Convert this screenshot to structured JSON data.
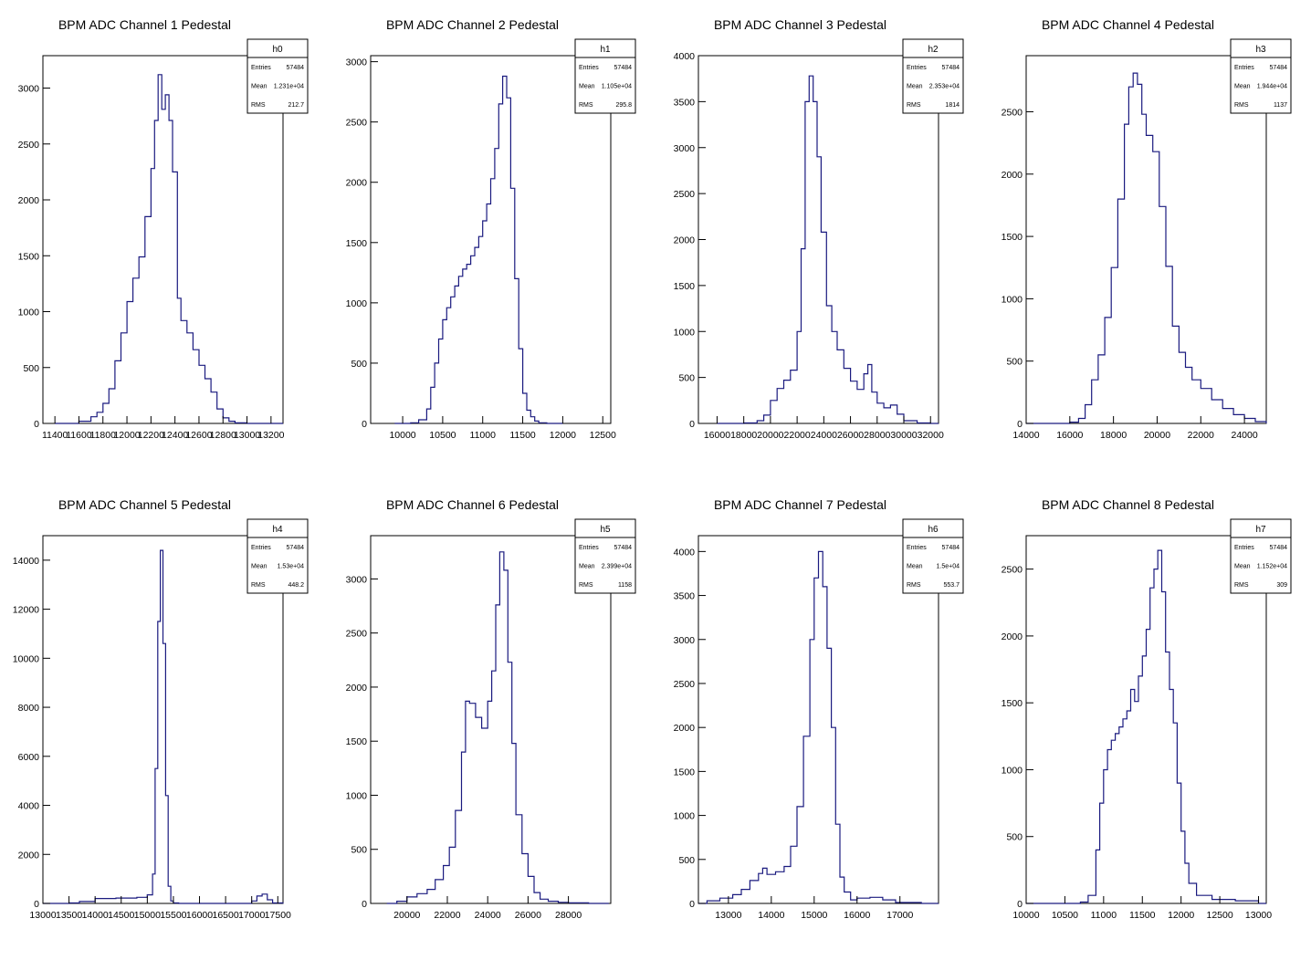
{
  "chart_data": [
    {
      "type": "histogram",
      "title": "BPM ADC Channel 1 Pedestal",
      "xlim": [
        11300,
        13300
      ],
      "ylim": [
        0,
        3290
      ],
      "xticks": [
        11400,
        11600,
        11800,
        12000,
        12200,
        12400,
        12600,
        12800,
        13000,
        13200
      ],
      "yticks": [
        0,
        500,
        1000,
        1500,
        2000,
        2500,
        3000
      ],
      "stats": {
        "name": "h0",
        "entries": "57484",
        "mean": "1.231e+04",
        "rms": "212.7"
      },
      "x": [
        11400,
        11500,
        11600,
        11700,
        11750,
        11800,
        11850,
        11900,
        11950,
        12000,
        12050,
        12100,
        12150,
        12200,
        12230,
        12260,
        12290,
        12320,
        12350,
        12380,
        12420,
        12450,
        12500,
        12550,
        12600,
        12650,
        12700,
        12750,
        12800,
        12850,
        12900,
        13000,
        13100,
        13200,
        13300
      ],
      "y": [
        0,
        0,
        20,
        60,
        100,
        180,
        310,
        560,
        810,
        1090,
        1300,
        1490,
        1850,
        2280,
        2710,
        3120,
        2810,
        2940,
        2710,
        2250,
        1120,
        920,
        810,
        660,
        520,
        400,
        280,
        130,
        50,
        20,
        5,
        0,
        0,
        0,
        0
      ]
    },
    {
      "type": "histogram",
      "title": "BPM ADC Channel 2 Pedestal",
      "xlim": [
        9600,
        12600
      ],
      "ylim": [
        0,
        3050
      ],
      "xticks": [
        10000,
        10500,
        11000,
        11500,
        12000,
        12500
      ],
      "yticks": [
        0,
        500,
        1000,
        1500,
        2000,
        2500,
        3000
      ],
      "stats": {
        "name": "h1",
        "entries": "57484",
        "mean": "1.105e+04",
        "rms": "295.8"
      },
      "x": [
        9900,
        10100,
        10200,
        10300,
        10350,
        10400,
        10450,
        10500,
        10550,
        10600,
        10650,
        10700,
        10750,
        10800,
        10850,
        10900,
        10950,
        11000,
        11050,
        11100,
        11150,
        11200,
        11250,
        11300,
        11350,
        11400,
        11450,
        11500,
        11550,
        11600,
        11650,
        11700,
        11800,
        12000
      ],
      "y": [
        0,
        5,
        30,
        120,
        300,
        500,
        700,
        860,
        960,
        1050,
        1140,
        1220,
        1280,
        1320,
        1390,
        1460,
        1550,
        1680,
        1820,
        2030,
        2280,
        2650,
        2880,
        2700,
        1950,
        1200,
        620,
        250,
        110,
        55,
        20,
        5,
        0,
        0
      ]
    },
    {
      "type": "histogram",
      "title": "BPM ADC Channel 3 Pedestal",
      "xlim": [
        14600,
        32600
      ],
      "ylim": [
        0,
        4000
      ],
      "xticks": [
        16000,
        18000,
        20000,
        22000,
        24000,
        26000,
        28000,
        30000,
        32000
      ],
      "yticks": [
        0,
        500,
        1000,
        1500,
        2000,
        2500,
        3000,
        3500,
        4000
      ],
      "stats": {
        "name": "h2",
        "entries": "57484",
        "mean": "2.353e+04",
        "rms": "1814"
      },
      "x": [
        16000,
        17000,
        18000,
        19000,
        19500,
        20000,
        20500,
        21000,
        21500,
        22000,
        22300,
        22600,
        22900,
        23200,
        23500,
        23800,
        24200,
        24600,
        25000,
        25500,
        26000,
        26500,
        27000,
        27300,
        27600,
        28000,
        28500,
        29000,
        29500,
        30000,
        31000,
        32000,
        32600
      ],
      "y": [
        0,
        0,
        5,
        30,
        90,
        250,
        380,
        470,
        580,
        1000,
        1900,
        3500,
        3780,
        3500,
        2900,
        2080,
        1280,
        1000,
        800,
        600,
        460,
        370,
        540,
        640,
        340,
        220,
        170,
        200,
        100,
        30,
        5,
        0,
        0
      ]
    },
    {
      "type": "histogram",
      "title": "BPM ADC Channel 4 Pedestal",
      "xlim": [
        14000,
        25000
      ],
      "ylim": [
        0,
        2950
      ],
      "xticks": [
        14000,
        16000,
        18000,
        20000,
        22000,
        24000
      ],
      "yticks": [
        0,
        500,
        1000,
        1500,
        2000,
        2500
      ],
      "stats": {
        "name": "h3",
        "entries": "57484",
        "mean": "1.944e+04",
        "rms": "1137"
      },
      "x": [
        14000,
        15000,
        16000,
        16400,
        16700,
        17000,
        17300,
        17600,
        17900,
        18200,
        18500,
        18700,
        18900,
        19100,
        19300,
        19500,
        19800,
        20100,
        20400,
        20700,
        21000,
        21300,
        21600,
        22000,
        22500,
        23000,
        23500,
        24000,
        24500,
        25000
      ],
      "y": [
        0,
        0,
        10,
        40,
        150,
        350,
        550,
        850,
        1250,
        1800,
        2400,
        2700,
        2810,
        2720,
        2480,
        2310,
        2180,
        1740,
        1260,
        780,
        570,
        450,
        350,
        280,
        190,
        120,
        70,
        40,
        15,
        0
      ]
    },
    {
      "type": "histogram",
      "title": "BPM ADC Channel 5 Pedestal",
      "xlim": [
        13000,
        17600
      ],
      "ylim": [
        0,
        15000
      ],
      "xticks": [
        13000,
        13500,
        14000,
        14500,
        15000,
        15500,
        16000,
        16500,
        17000,
        17500
      ],
      "yticks": [
        0,
        2000,
        4000,
        6000,
        8000,
        10000,
        12000,
        14000
      ],
      "stats": {
        "name": "h4",
        "entries": "57484",
        "mean": "1.53e+04",
        "rms": "448.2"
      },
      "x": [
        13000,
        13500,
        13700,
        14000,
        14400,
        14800,
        15000,
        15100,
        15150,
        15200,
        15250,
        15300,
        15350,
        15400,
        15450,
        15500,
        15600,
        16000,
        16500,
        17000,
        17100,
        17200,
        17300,
        17400,
        17600
      ],
      "y": [
        0,
        20,
        80,
        200,
        220,
        250,
        350,
        1200,
        5500,
        11500,
        14400,
        10600,
        4400,
        700,
        100,
        20,
        0,
        0,
        0,
        100,
        300,
        380,
        150,
        20,
        0
      ]
    },
    {
      "type": "histogram",
      "title": "BPM ADC Channel 6 Pedestal",
      "xlim": [
        18200,
        30100
      ],
      "ylim": [
        0,
        3400
      ],
      "xticks": [
        20000,
        22000,
        24000,
        26000,
        28000
      ],
      "yticks": [
        0,
        500,
        1000,
        1500,
        2000,
        2500,
        3000
      ],
      "stats": {
        "name": "h5",
        "entries": "57484",
        "mean": "2.399e+04",
        "rms": "1158"
      },
      "x": [
        19000,
        19500,
        20000,
        20500,
        21000,
        21400,
        21800,
        22100,
        22400,
        22700,
        22900,
        23100,
        23400,
        23700,
        24000,
        24200,
        24400,
        24600,
        24800,
        25000,
        25200,
        25400,
        25700,
        26000,
        26300,
        26600,
        27000,
        27500,
        28000,
        29000,
        30000
      ],
      "y": [
        0,
        20,
        60,
        90,
        130,
        220,
        350,
        520,
        860,
        1400,
        1870,
        1850,
        1720,
        1620,
        1870,
        2150,
        2760,
        3250,
        3080,
        2230,
        1480,
        820,
        460,
        250,
        100,
        40,
        20,
        10,
        5,
        0,
        0
      ]
    },
    {
      "type": "histogram",
      "title": "BPM ADC Channel 7 Pedestal",
      "xlim": [
        12300,
        17900
      ],
      "ylim": [
        0,
        4180
      ],
      "xticks": [
        13000,
        14000,
        15000,
        16000,
        17000
      ],
      "yticks": [
        0,
        500,
        1000,
        1500,
        2000,
        2500,
        3000,
        3500,
        4000
      ],
      "stats": {
        "name": "h6",
        "entries": "57484",
        "mean": "1.5e+04",
        "rms": "553.7"
      },
      "x": [
        12300,
        12500,
        12800,
        13100,
        13300,
        13500,
        13700,
        13800,
        13900,
        14100,
        14300,
        14450,
        14600,
        14750,
        14900,
        15000,
        15100,
        15200,
        15300,
        15400,
        15500,
        15600,
        15700,
        15850,
        16000,
        16300,
        16600,
        16900,
        17500,
        17900
      ],
      "y": [
        0,
        30,
        60,
        100,
        160,
        260,
        340,
        400,
        330,
        360,
        420,
        650,
        1100,
        1900,
        3000,
        3700,
        4000,
        3600,
        2900,
        2000,
        900,
        300,
        130,
        40,
        60,
        70,
        40,
        10,
        0,
        0
      ]
    },
    {
      "type": "histogram",
      "title": "BPM ADC Channel 8 Pedestal",
      "xlim": [
        10000,
        13100
      ],
      "ylim": [
        0,
        2750
      ],
      "xticks": [
        10000,
        10500,
        11000,
        11500,
        12000,
        12500,
        13000
      ],
      "yticks": [
        0,
        500,
        1000,
        1500,
        2000,
        2500
      ],
      "stats": {
        "name": "h7",
        "entries": "57484",
        "mean": "1.152e+04",
        "rms": "309"
      },
      "x": [
        10000,
        10500,
        10700,
        10800,
        10900,
        10950,
        11000,
        11050,
        11100,
        11150,
        11200,
        11250,
        11300,
        11350,
        11400,
        11450,
        11500,
        11550,
        11600,
        11650,
        11700,
        11750,
        11800,
        11850,
        11900,
        11950,
        12000,
        12050,
        12100,
        12200,
        12400,
        12700,
        13000,
        13100
      ],
      "y": [
        0,
        0,
        10,
        60,
        400,
        750,
        1000,
        1150,
        1220,
        1270,
        1320,
        1380,
        1440,
        1600,
        1510,
        1700,
        1850,
        2050,
        2360,
        2500,
        2640,
        2330,
        1880,
        1600,
        1350,
        900,
        540,
        300,
        150,
        60,
        30,
        20,
        0,
        0
      ]
    }
  ],
  "stats_labels": {
    "entries": "Entries",
    "mean": "Mean",
    "rms": "RMS"
  },
  "colors": {
    "histogram_line": "#1a1a7f",
    "axis": "#000000",
    "background": "#ffffff"
  }
}
